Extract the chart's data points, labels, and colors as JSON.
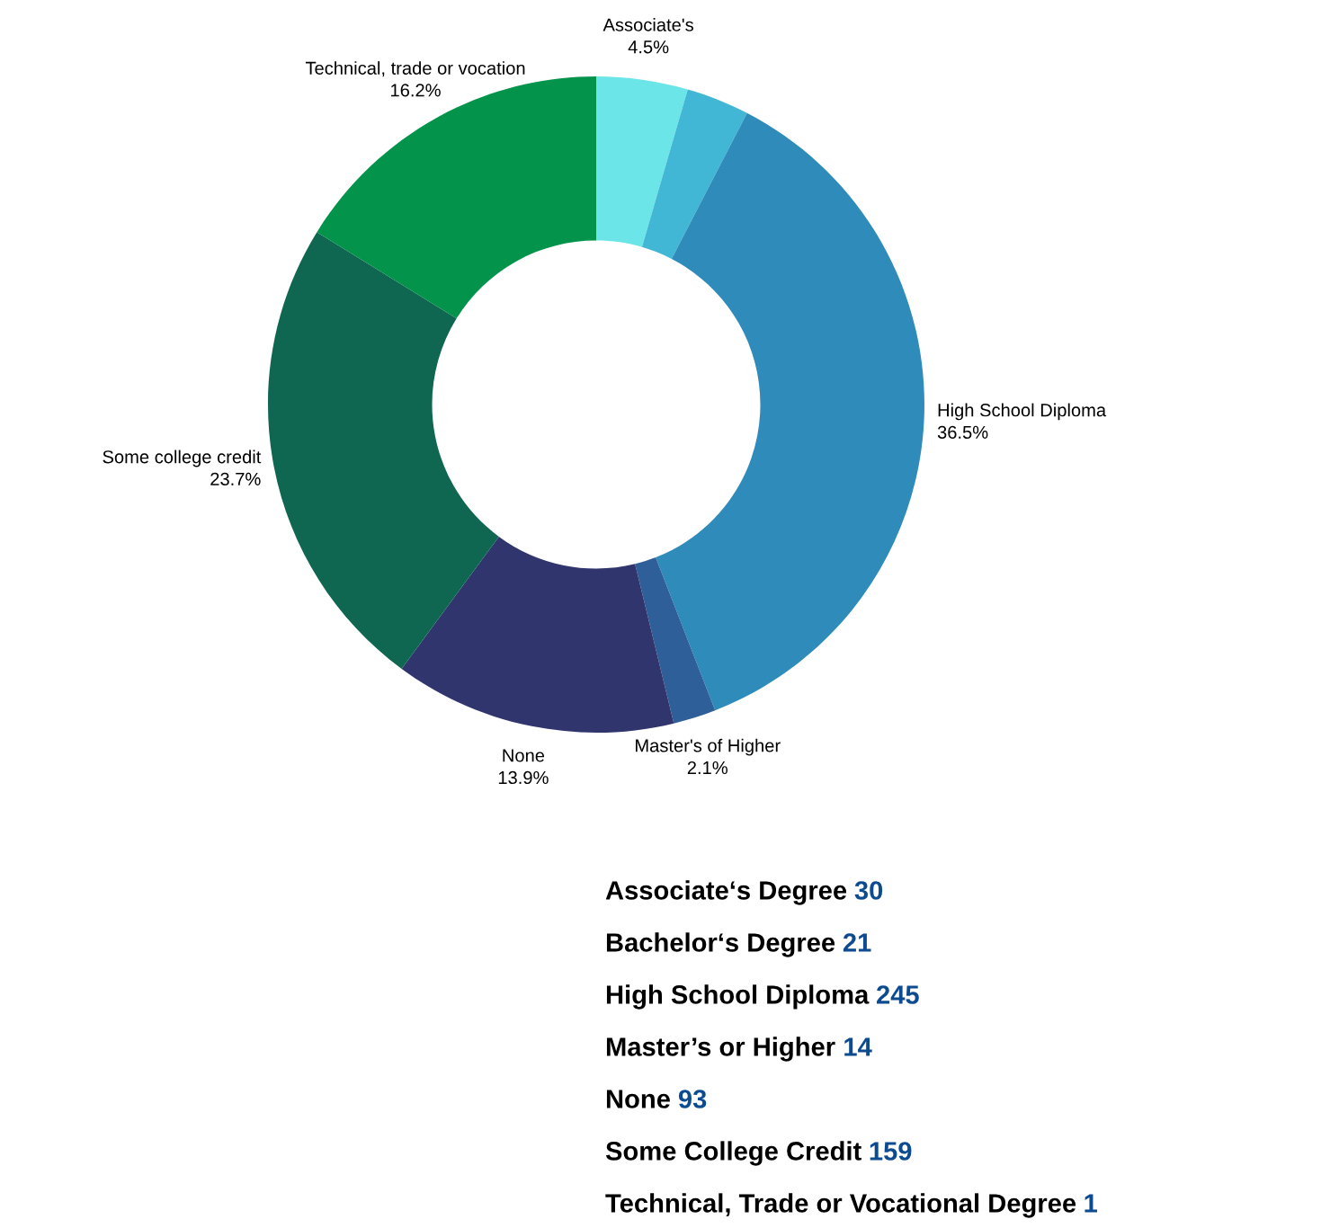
{
  "chart_data": {
    "type": "donut",
    "categories": [
      "Associate's",
      null,
      "High School Diploma",
      "Master's of Higher",
      "None",
      "Some college credit",
      "Technical, trade or vocation"
    ],
    "values": [
      4.5,
      3.1,
      36.5,
      2.1,
      13.9,
      23.7,
      16.2
    ],
    "value_labels": [
      "4.5%",
      null,
      "36.5%",
      "2.1%",
      "13.9%",
      "23.7%",
      "16.2%"
    ],
    "colors": [
      "#6ce5e8",
      "#41b6d5",
      "#2e8bba",
      "#2e5f98",
      "#31356e",
      "#0f6751",
      "#03934a"
    ],
    "annotations": [
      "Associate‘s Degree 30",
      "Bachelor‘s Degree 21",
      "High School Diploma 245",
      "Master’s or Higher 14",
      "None 93",
      "Some College Credit 159",
      "Technical, Trade or Vocational Degree 1"
    ],
    "legend": false
  }
}
